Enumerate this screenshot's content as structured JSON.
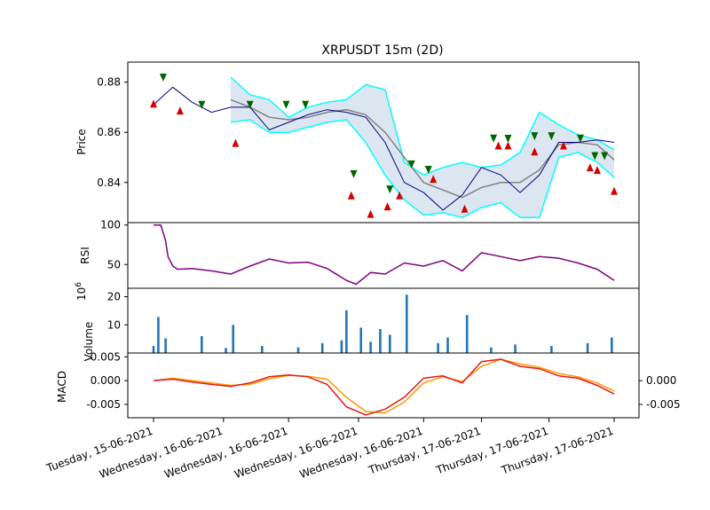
{
  "chart_data": [
    {
      "panel": "price",
      "type": "line",
      "title": "XRPUSDT 15m (2D)",
      "ylabel": "Price",
      "ylim": [
        0.824,
        0.888
      ],
      "yticks": [
        "0.84",
        "0.86",
        "0.88"
      ],
      "x": [
        0,
        8,
        16,
        24,
        32,
        40,
        48,
        56,
        64,
        72,
        80,
        88,
        96,
        104,
        112,
        120,
        128,
        136,
        144,
        152,
        160,
        168,
        176,
        184,
        191
      ],
      "series": [
        {
          "name": "close",
          "values": [
            0.871,
            0.878,
            0.872,
            0.868,
            0.87,
            0.87,
            0.861,
            0.864,
            0.867,
            0.869,
            0.868,
            0.866,
            0.856,
            0.84,
            0.836,
            0.829,
            0.835,
            0.846,
            0.843,
            0.836,
            0.843,
            0.856,
            0.856,
            0.857,
            0.856
          ]
        },
        {
          "name": "moving average",
          "values": [
            null,
            null,
            null,
            null,
            0.873,
            0.87,
            0.866,
            0.865,
            0.866,
            0.868,
            0.869,
            0.867,
            0.86,
            0.85,
            0.84,
            0.837,
            0.834,
            0.838,
            0.84,
            0.84,
            0.845,
            0.855,
            0.856,
            0.855,
            0.849
          ]
        },
        {
          "name": "upper band",
          "values": [
            null,
            null,
            null,
            null,
            0.882,
            0.875,
            0.873,
            0.866,
            0.87,
            0.872,
            0.873,
            0.879,
            0.877,
            0.848,
            0.843,
            0.846,
            0.848,
            0.846,
            0.847,
            0.852,
            0.868,
            0.863,
            0.859,
            0.857,
            0.853
          ]
        },
        {
          "name": "lower band",
          "values": [
            null,
            null,
            null,
            null,
            0.864,
            0.865,
            0.86,
            0.86,
            0.862,
            0.864,
            0.865,
            0.856,
            0.843,
            0.833,
            0.827,
            0.828,
            0.826,
            0.83,
            0.832,
            0.826,
            0.826,
            0.85,
            0.852,
            0.848,
            0.842
          ]
        }
      ],
      "buy_signals": [
        [
          0,
          0.8713
        ],
        [
          11,
          0.8685
        ],
        [
          34,
          0.8556
        ],
        [
          82,
          0.8347
        ],
        [
          90,
          0.8273
        ],
        [
          97,
          0.8303
        ],
        [
          102,
          0.8347
        ],
        [
          116,
          0.8413
        ],
        [
          129,
          0.8294
        ],
        [
          143,
          0.8546
        ],
        [
          147,
          0.8546
        ],
        [
          158,
          0.8522
        ],
        [
          170,
          0.8546
        ],
        [
          181,
          0.8459
        ],
        [
          184,
          0.8448
        ],
        [
          191,
          0.8365
        ]
      ],
      "sell_signals": [
        [
          4,
          0.882
        ],
        [
          20,
          0.8711
        ],
        [
          40,
          0.8711
        ],
        [
          55,
          0.8711
        ],
        [
          63,
          0.8711
        ],
        [
          83,
          0.8435
        ],
        [
          98,
          0.8374
        ],
        [
          107,
          0.8474
        ],
        [
          114,
          0.8452
        ],
        [
          141,
          0.8577
        ],
        [
          147,
          0.8576
        ],
        [
          158,
          0.8586
        ],
        [
          165,
          0.8586
        ],
        [
          177,
          0.8577
        ],
        [
          183,
          0.8507
        ],
        [
          187,
          0.8507
        ]
      ]
    },
    {
      "panel": "rsi",
      "type": "line",
      "ylabel": "RSI",
      "ylim": [
        20,
        103
      ],
      "yticks": [
        "100",
        "50"
      ],
      "x": [
        0,
        3,
        5,
        6,
        8,
        10,
        16,
        24,
        32,
        40,
        48,
        56,
        64,
        72,
        80,
        84,
        90,
        96,
        104,
        112,
        120,
        128,
        136,
        144,
        152,
        160,
        168,
        176,
        184,
        191
      ],
      "values": [
        100,
        100,
        80,
        60,
        48,
        44,
        45,
        42,
        38,
        48,
        57,
        52,
        53,
        45,
        30,
        25,
        40,
        38,
        52,
        48,
        55,
        42,
        65,
        60,
        55,
        60,
        58,
        52,
        44,
        30
      ]
    },
    {
      "panel": "volume",
      "type": "bar",
      "ylabel": "Volume",
      "exponent": "10^6",
      "ylim": [
        0,
        23
      ],
      "yticks": [
        "20",
        "10"
      ],
      "x": [
        0,
        2,
        5,
        20,
        30,
        33,
        45,
        60,
        70,
        78,
        80,
        86,
        90,
        94,
        98,
        105,
        118,
        122,
        130,
        140,
        150,
        165,
        180,
        190
      ],
      "values": [
        2.5,
        12.8,
        5.2,
        6.0,
        1.8,
        10.0,
        2.5,
        2.0,
        3.5,
        4.5,
        15.2,
        9.0,
        4.0,
        8.5,
        6.5,
        20.7,
        3.5,
        5.5,
        13.5,
        2.0,
        3.0,
        2.5,
        3.5,
        5.5
      ]
    },
    {
      "panel": "macd",
      "type": "line",
      "ylabel": "MACD",
      "ylim": [
        -0.0078,
        0.0058
      ],
      "yticks": [
        "0.005",
        "0.000",
        "-0.005"
      ],
      "x": [
        0,
        8,
        16,
        24,
        32,
        40,
        48,
        56,
        64,
        72,
        80,
        88,
        96,
        104,
        112,
        120,
        128,
        136,
        144,
        152,
        160,
        168,
        176,
        184,
        191
      ],
      "series": [
        {
          "name": "macd",
          "values": [
            0,
            0.0003,
            -0.0003,
            -0.0008,
            -0.0012,
            -0.0005,
            0.0008,
            0.0012,
            0.0008,
            -0.0008,
            -0.0055,
            -0.0072,
            -0.006,
            -0.0035,
            0.0005,
            0.001,
            -0.0005,
            0.004,
            0.0045,
            0.003,
            0.0025,
            0.001,
            0.0005,
            -0.001,
            -0.0028
          ]
        },
        {
          "name": "signal",
          "values": [
            0,
            0.0005,
            0,
            -0.0005,
            -0.001,
            -0.0008,
            0.0004,
            0.0011,
            0.0009,
            0.0003,
            -0.0035,
            -0.0065,
            -0.0068,
            -0.0045,
            -0.0005,
            0.0008,
            -0.0002,
            0.003,
            0.0045,
            0.0035,
            0.0028,
            0.0015,
            0.0008,
            -0.0005,
            -0.0022
          ]
        }
      ],
      "right_yticks": [
        "0.000",
        "-0.005"
      ]
    }
  ],
  "x_axis": {
    "tick_positions": [
      0,
      29,
      56,
      85,
      112,
      136,
      164,
      191
    ],
    "tick_labels": [
      "Tuesday, 15-06-2021",
      "Wednesday, 16-06-2021",
      "Wednesday, 16-06-2021",
      "Wednesday, 16-06-2021",
      "Wednesday, 16-06-2021",
      "Thursday, 17-06-2021",
      "Thursday, 17-06-2021",
      "Thursday, 17-06-2021"
    ]
  },
  "colors": {
    "close": "#000080",
    "moving_average": "#808080",
    "bands": "#00ffff",
    "band_fill": "#dce6f0",
    "buy": "#d40000",
    "sell": "#006400",
    "rsi": "#800080",
    "volume": "#1f77b4",
    "macd": "#e41a1c",
    "signal": "#ff9900"
  }
}
